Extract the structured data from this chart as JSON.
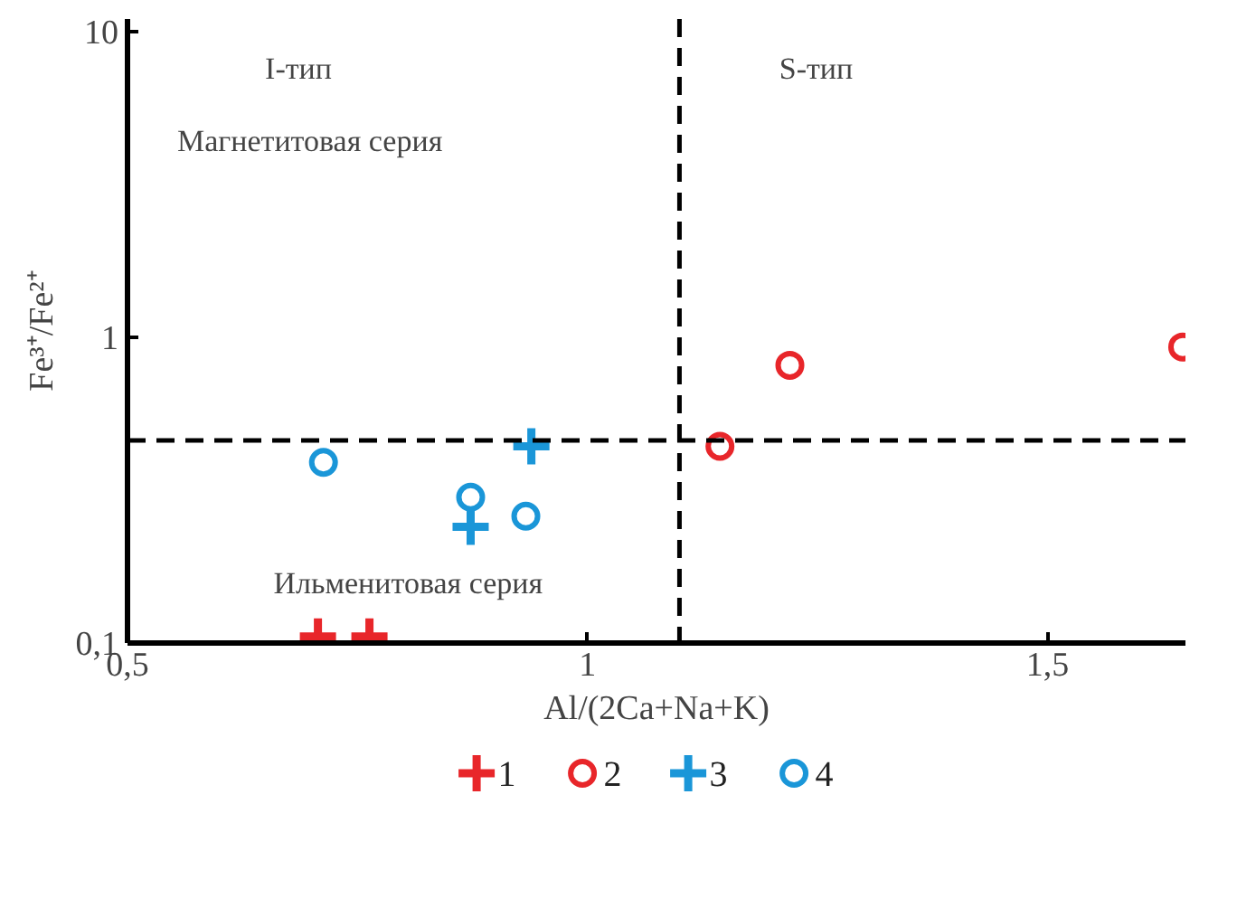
{
  "chart_data": {
    "type": "scatter",
    "xlabel": "Al/(2Ca+Na+K)",
    "ylabel": "Fe³⁺/Fe²⁺",
    "log": "y",
    "xlim": [
      0.5,
      1.65
    ],
    "ylim": [
      0.1,
      11
    ],
    "xticks": [
      {
        "value": 0.5,
        "label": "0,5"
      },
      1,
      {
        "value": 1.5,
        "label": "1,5"
      }
    ],
    "yticks": [
      {
        "value": 0.1,
        "label": "0,1"
      },
      1,
      10
    ],
    "grid": false,
    "legend": "bottom",
    "series": [
      {
        "name": "1",
        "color": "#e8262a",
        "marker": "cross",
        "x": [
          0.707,
          0.763
        ],
        "values": [
          0.105,
          0.105
        ]
      },
      {
        "name": "2",
        "color": "#e8262a",
        "marker": "circle",
        "x": [
          1.144,
          1.22,
          1.647
        ],
        "values": [
          0.44,
          0.81,
          0.93
        ]
      },
      {
        "name": "3",
        "color": "#1a96d8",
        "marker": "cross",
        "x": [
          0.873,
          0.939
        ],
        "values": [
          0.24,
          0.44
        ]
      },
      {
        "name": "4",
        "color": "#1a96d8",
        "marker": "circle",
        "x": [
          0.713,
          0.873,
          0.933
        ],
        "values": [
          0.39,
          0.3,
          0.26
        ]
      }
    ],
    "ref_lines": [
      {
        "axis": "x",
        "value": 1.1,
        "color": "#000000",
        "line_style": "dashed"
      },
      {
        "axis": "y",
        "value": 0.46,
        "color": "#000000",
        "line_style": "dashed"
      }
    ],
    "annotations": [
      "I-тип",
      "S-тип",
      "Магнетитовая серия",
      "Ильменитовая серия"
    ]
  }
}
